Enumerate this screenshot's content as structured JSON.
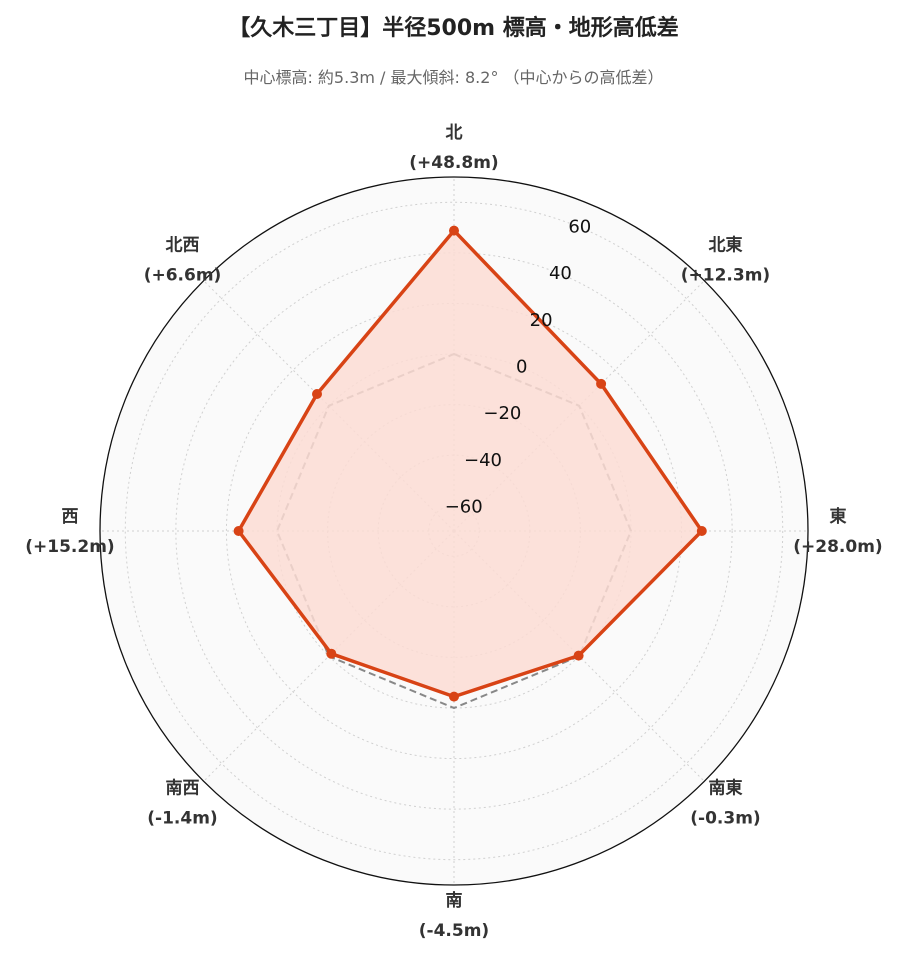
{
  "title": "【久木三丁目】半径500m 標高・地形高低差",
  "subtitle": "中心標高: 約5.3m / 最大傾斜: 8.2° （中心からの高低差）",
  "chart_data": {
    "type": "radar",
    "categories": [
      "北",
      "北東",
      "東",
      "南東",
      "南",
      "南西",
      "西",
      "北西"
    ],
    "category_values": [
      "(+48.8m)",
      "(+12.3m)",
      "(+28.0m)",
      "(-0.3m)",
      "(-4.5m)",
      "(-1.4m)",
      "(+15.2m)",
      "(+6.6m)"
    ],
    "series": [
      {
        "values": [
          48.8,
          12.3,
          28.0,
          -0.3,
          -4.5,
          -1.4,
          15.2,
          6.6
        ],
        "color": "#d84315",
        "fill": "#fcdcd4",
        "style": "solid"
      },
      {
        "values": [
          0,
          0,
          0,
          0,
          0,
          0,
          0,
          0
        ],
        "color": "#888888",
        "style": "dashed"
      }
    ],
    "radial_ticks": [
      -60,
      -40,
      -20,
      0,
      20,
      40,
      60
    ],
    "radial_tick_labels": [
      "−60",
      "−40",
      "−20",
      "0",
      "20",
      "40",
      "60"
    ],
    "rlim": [
      -70,
      70
    ],
    "grid": true,
    "background": "#fafafa"
  }
}
